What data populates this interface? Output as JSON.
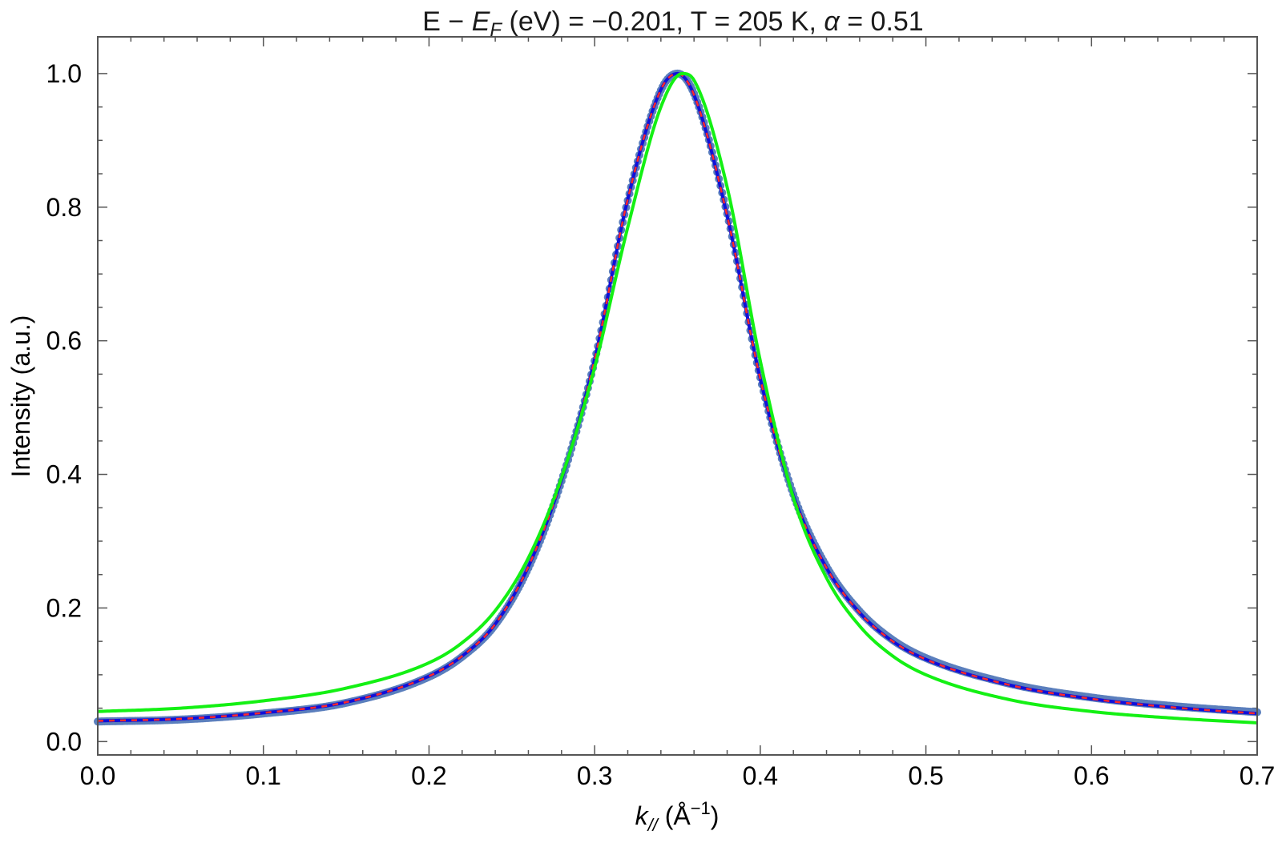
{
  "chart_data": {
    "type": "line",
    "title": {
      "pre": "E − ",
      "ef_main": "E",
      "ef_sub": "F",
      "post1": " (eV) = −0.201, T = 205 K, ",
      "alpha": "α",
      "post2": " = 0.51"
    },
    "xlabel": {
      "k": "k",
      "k_sub": "//",
      "unit_pre": " (Å",
      "unit_sup": "−1",
      "unit_post": ")"
    },
    "ylabel": "Intensity (a.u.)",
    "xlim": [
      0.0,
      0.7
    ],
    "ylim": [
      -0.02,
      1.055
    ],
    "xticks": [
      "0.0",
      "0.1",
      "0.2",
      "0.3",
      "0.4",
      "0.5",
      "0.6",
      "0.7"
    ],
    "yticks": [
      "0.0",
      "0.2",
      "0.4",
      "0.6",
      "0.8",
      "1.0"
    ],
    "grid": false,
    "colors": {
      "data": "#5b7fbd",
      "fit_blue": "#1010d8",
      "fit_red_dashed": "#ff2a2a",
      "fit_green": "#14f014",
      "frame": "#555555"
    },
    "series": [
      {
        "style": "points",
        "color": "#5b7fbd",
        "x": [
          0.0,
          0.05,
          0.1,
          0.15,
          0.2,
          0.22,
          0.24,
          0.26,
          0.28,
          0.3,
          0.32,
          0.34,
          0.35,
          0.36,
          0.38,
          0.4,
          0.42,
          0.44,
          0.46,
          0.48,
          0.5,
          0.55,
          0.6,
          0.65,
          0.7
        ],
        "y": [
          0.03,
          0.033,
          0.042,
          0.058,
          0.097,
          0.127,
          0.175,
          0.26,
          0.39,
          0.57,
          0.81,
          0.975,
          1.0,
          0.97,
          0.79,
          0.545,
          0.37,
          0.262,
          0.195,
          0.152,
          0.125,
          0.087,
          0.066,
          0.053,
          0.044
        ]
      },
      {
        "style": "line",
        "color": "#1010d8",
        "x": [
          0.0,
          0.05,
          0.1,
          0.15,
          0.2,
          0.22,
          0.24,
          0.26,
          0.28,
          0.3,
          0.32,
          0.34,
          0.35,
          0.36,
          0.38,
          0.4,
          0.42,
          0.44,
          0.46,
          0.48,
          0.5,
          0.55,
          0.6,
          0.65,
          0.7
        ],
        "y": [
          0.031,
          0.034,
          0.043,
          0.059,
          0.098,
          0.128,
          0.176,
          0.262,
          0.392,
          0.572,
          0.812,
          0.976,
          1.0,
          0.968,
          0.787,
          0.543,
          0.368,
          0.26,
          0.193,
          0.15,
          0.123,
          0.085,
          0.064,
          0.051,
          0.042
        ]
      },
      {
        "style": "dashed",
        "color": "#ff2a2a",
        "x": [
          0.0,
          0.05,
          0.1,
          0.15,
          0.2,
          0.22,
          0.24,
          0.26,
          0.28,
          0.3,
          0.32,
          0.34,
          0.35,
          0.36,
          0.38,
          0.4,
          0.42,
          0.44,
          0.46,
          0.48,
          0.5,
          0.55,
          0.6,
          0.65,
          0.7
        ],
        "y": [
          0.031,
          0.034,
          0.043,
          0.059,
          0.098,
          0.128,
          0.176,
          0.262,
          0.392,
          0.572,
          0.812,
          0.976,
          1.0,
          0.968,
          0.787,
          0.543,
          0.368,
          0.26,
          0.193,
          0.15,
          0.123,
          0.085,
          0.064,
          0.051,
          0.042
        ]
      },
      {
        "style": "line",
        "color": "#14f014",
        "x": [
          0.0,
          0.05,
          0.1,
          0.15,
          0.2,
          0.22,
          0.24,
          0.26,
          0.28,
          0.3,
          0.32,
          0.34,
          0.353,
          0.36,
          0.38,
          0.4,
          0.42,
          0.44,
          0.46,
          0.48,
          0.5,
          0.55,
          0.6,
          0.65,
          0.7
        ],
        "y": [
          0.045,
          0.05,
          0.061,
          0.08,
          0.118,
          0.148,
          0.196,
          0.275,
          0.395,
          0.56,
          0.77,
          0.95,
          1.0,
          0.99,
          0.83,
          0.57,
          0.365,
          0.245,
          0.173,
          0.128,
          0.1,
          0.063,
          0.045,
          0.035,
          0.028
        ]
      }
    ]
  }
}
